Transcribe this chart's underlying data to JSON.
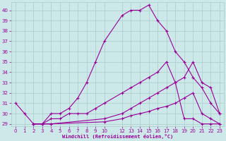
{
  "xlabel": "Windchill (Refroidissement éolien,°C)",
  "bg_color": "#cce8e8",
  "grid_color": "#aacccc",
  "line_color": "#990099",
  "xlim": [
    -0.5,
    23.5
  ],
  "ylim": [
    28.8,
    40.8
  ],
  "yticks": [
    29,
    30,
    31,
    32,
    33,
    34,
    35,
    36,
    37,
    38,
    39,
    40
  ],
  "xticks": [
    0,
    1,
    2,
    3,
    4,
    5,
    6,
    7,
    8,
    9,
    10,
    12,
    13,
    14,
    15,
    16,
    17,
    18,
    19,
    20,
    21,
    22,
    23
  ],
  "lines": [
    {
      "x": [
        0,
        1,
        2,
        3,
        4,
        5,
        6,
        7,
        8,
        9,
        10,
        12,
        13,
        14,
        15,
        16,
        17,
        18,
        19,
        20,
        21,
        22,
        23
      ],
      "y": [
        31,
        30,
        29,
        29,
        30,
        30,
        30.5,
        31.5,
        33,
        35,
        37,
        39.5,
        40,
        40,
        40.5,
        39,
        38,
        36,
        35,
        33.5,
        32.5,
        31,
        30
      ]
    },
    {
      "x": [
        2,
        3,
        4,
        5,
        6,
        7,
        8,
        9,
        10,
        12,
        13,
        14,
        15,
        16,
        17,
        18,
        19,
        20,
        21,
        22,
        23
      ],
      "y": [
        29,
        29,
        29.5,
        29.5,
        30,
        30,
        30,
        30.5,
        31,
        32,
        32.5,
        33,
        33.5,
        34,
        35,
        33,
        29.5,
        29.5,
        29,
        29,
        29
      ]
    },
    {
      "x": [
        2,
        3,
        4,
        10,
        12,
        13,
        14,
        15,
        16,
        17,
        18,
        19,
        20,
        21,
        22,
        23
      ],
      "y": [
        29,
        29,
        29,
        29.5,
        30,
        30.5,
        31,
        31.5,
        32,
        32.5,
        33,
        33.5,
        35,
        33,
        32.5,
        30
      ]
    },
    {
      "x": [
        2,
        3,
        4,
        10,
        12,
        13,
        14,
        15,
        16,
        17,
        18,
        19,
        20,
        21,
        22,
        23
      ],
      "y": [
        29,
        29,
        29,
        29.2,
        29.5,
        29.8,
        30,
        30.2,
        30.5,
        30.7,
        31,
        31.5,
        32,
        30,
        29.5,
        29
      ]
    }
  ]
}
